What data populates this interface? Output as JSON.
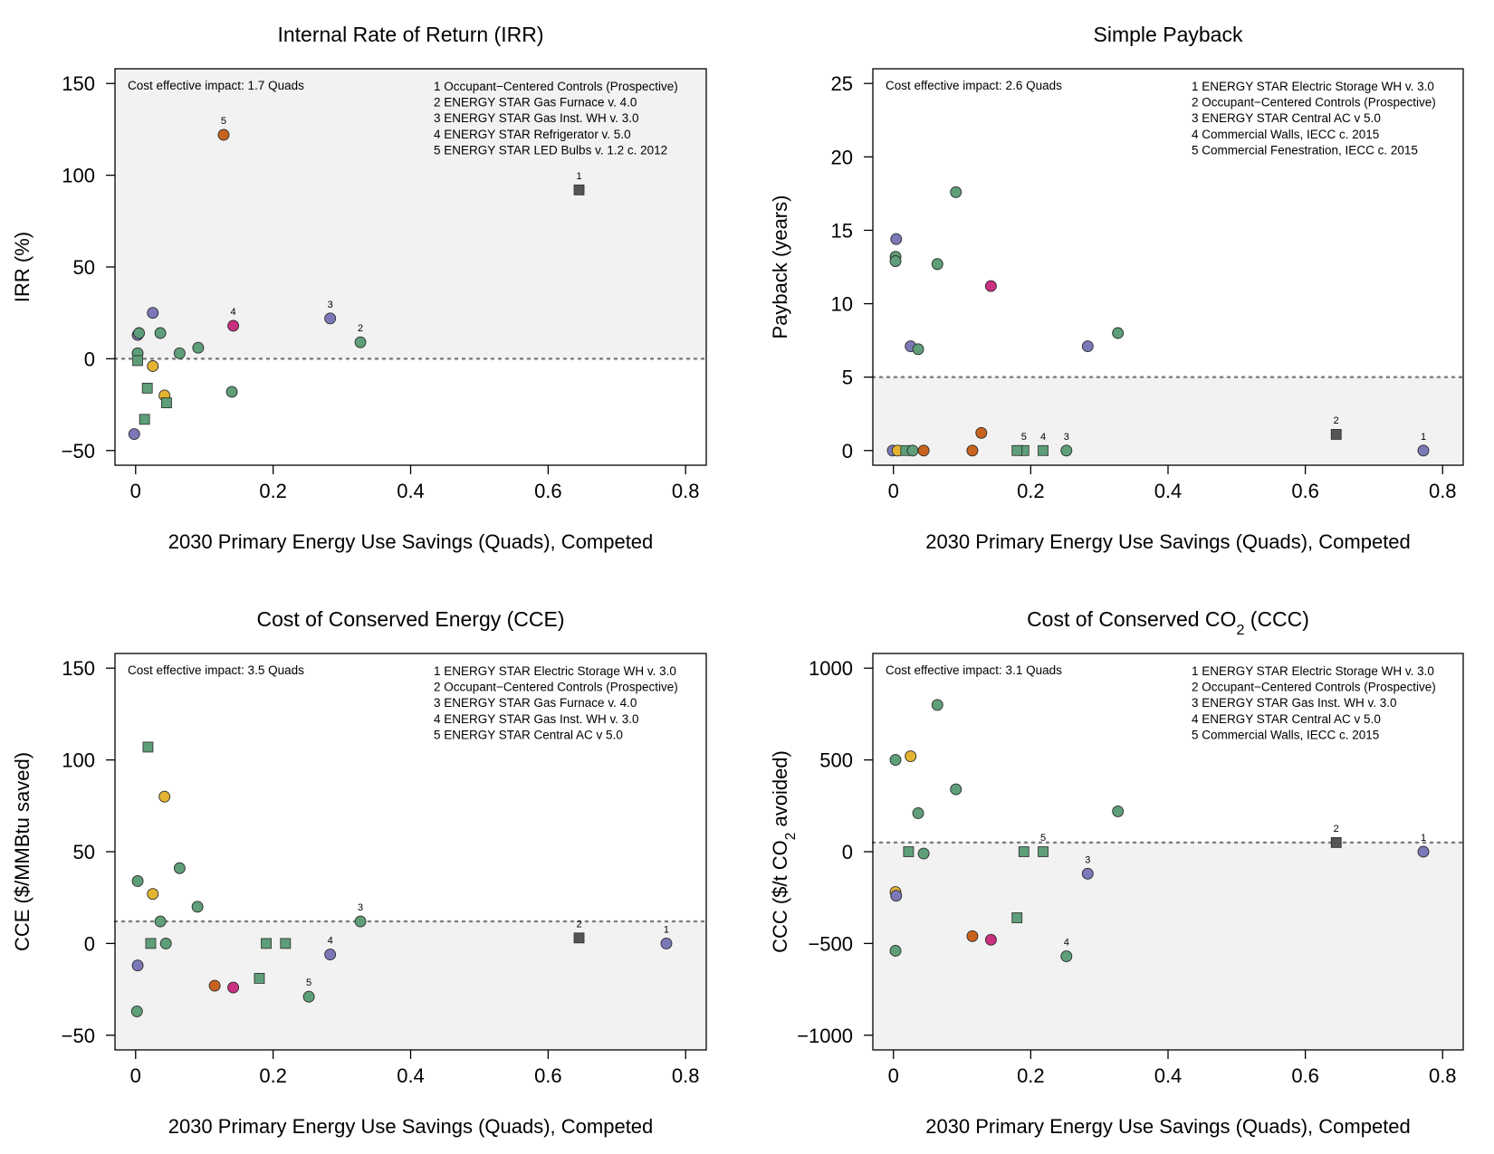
{
  "chart_data": [
    {
      "type": "scatter",
      "title": "Internal Rate of Return (IRR)",
      "xlabel": "2030 Primary Energy Use Savings (Quads), Competed",
      "ylabel": "IRR (%)",
      "xlim": [
        -0.03,
        0.83
      ],
      "ylim": [
        -58,
        158
      ],
      "xticks": [
        "0",
        "0.2",
        "0.4",
        "0.6",
        "0.8"
      ],
      "yticks": [
        "−50",
        "0",
        "50",
        "100",
        "150"
      ],
      "ytick_values": [
        -50,
        0,
        50,
        100,
        150
      ],
      "threshold": 0,
      "shaded_region": "above",
      "impact_note": "Cost effective impact: 1.7 Quads",
      "legend": [
        "1 Occupant−Centered Controls (Prospective)",
        "2 ENERGY STAR Gas Furnace v. 4.0",
        "3 ENERGY STAR Gas Inst. WH v. 3.0",
        "4 ENERGY STAR Refrigerator v. 5.0",
        "5 ENERGY STAR LED Bulbs v. 1.2 c. 2012"
      ],
      "points": [
        {
          "x": 0.645,
          "y": 92,
          "shape": "square",
          "color": "#555555",
          "label": "1"
        },
        {
          "x": 0.128,
          "y": 122,
          "shape": "circle",
          "color": "#c8621f",
          "label": "5"
        },
        {
          "x": 0.142,
          "y": 18,
          "shape": "circle",
          "color": "#c9307f",
          "label": "4"
        },
        {
          "x": 0.283,
          "y": 22,
          "shape": "circle",
          "color": "#7b78b8",
          "label": "3"
        },
        {
          "x": 0.327,
          "y": 9,
          "shape": "circle",
          "color": "#5e9e78",
          "label": "2"
        },
        {
          "x": 0.025,
          "y": 25,
          "shape": "circle",
          "color": "#7b78b8",
          "label": ""
        },
        {
          "x": 0.003,
          "y": 13,
          "shape": "circle",
          "color": "#7b78b8",
          "label": ""
        },
        {
          "x": 0.005,
          "y": 14,
          "shape": "circle",
          "color": "#5e9e78",
          "label": ""
        },
        {
          "x": 0.036,
          "y": 14,
          "shape": "circle",
          "color": "#5e9e78",
          "label": ""
        },
        {
          "x": 0.003,
          "y": 3,
          "shape": "circle",
          "color": "#5e9e78",
          "label": ""
        },
        {
          "x": 0.091,
          "y": 6,
          "shape": "circle",
          "color": "#5e9e78",
          "label": ""
        },
        {
          "x": 0.064,
          "y": 3,
          "shape": "circle",
          "color": "#5e9e78",
          "label": ""
        },
        {
          "x": 0.003,
          "y": -1,
          "shape": "square",
          "color": "#5e9e78",
          "label": ""
        },
        {
          "x": 0.025,
          "y": -4,
          "shape": "circle",
          "color": "#e3b332",
          "label": ""
        },
        {
          "x": 0.017,
          "y": -16,
          "shape": "square",
          "color": "#5e9e78",
          "label": ""
        },
        {
          "x": 0.042,
          "y": -20,
          "shape": "circle",
          "color": "#e3b332",
          "label": ""
        },
        {
          "x": 0.045,
          "y": -24,
          "shape": "square",
          "color": "#5e9e78",
          "label": ""
        },
        {
          "x": 0.14,
          "y": -18,
          "shape": "circle",
          "color": "#5e9e78",
          "label": ""
        },
        {
          "x": 0.013,
          "y": -33,
          "shape": "square",
          "color": "#5e9e78",
          "label": ""
        },
        {
          "x": -0.002,
          "y": -41,
          "shape": "circle",
          "color": "#7b78b8",
          "label": ""
        }
      ]
    },
    {
      "type": "scatter",
      "title": "Simple Payback",
      "xlabel": "2030 Primary Energy Use Savings (Quads), Competed",
      "ylabel": "Payback (years)",
      "xlim": [
        -0.03,
        0.83
      ],
      "ylim": [
        -1,
        26
      ],
      "xticks": [
        "0",
        "0.2",
        "0.4",
        "0.6",
        "0.8"
      ],
      "yticks": [
        "0",
        "5",
        "10",
        "15",
        "20",
        "25"
      ],
      "ytick_values": [
        0,
        5,
        10,
        15,
        20,
        25
      ],
      "threshold": 5,
      "shaded_region": "below",
      "impact_note": "Cost effective impact: 2.6 Quads",
      "legend": [
        "1 ENERGY STAR Electric Storage WH v. 3.0",
        "2 Occupant−Centered Controls (Prospective)",
        "3 ENERGY STAR Central AC v 5.0",
        "4 Commercial Walls, IECC c. 2015",
        "5 Commercial Fenestration, IECC c. 2015"
      ],
      "points": [
        {
          "x": 0.772,
          "y": 0,
          "shape": "circle",
          "color": "#7b78b8",
          "label": "1"
        },
        {
          "x": 0.645,
          "y": 1.1,
          "shape": "square",
          "color": "#555555",
          "label": "2"
        },
        {
          "x": 0.252,
          "y": 0,
          "shape": "circle",
          "color": "#5e9e78",
          "label": "3"
        },
        {
          "x": 0.218,
          "y": 0,
          "shape": "square",
          "color": "#5e9e78",
          "label": "4"
        },
        {
          "x": 0.19,
          "y": 0,
          "shape": "square",
          "color": "#5e9e78",
          "label": "5"
        },
        {
          "x": 0.091,
          "y": 17.6,
          "shape": "circle",
          "color": "#5e9e78",
          "label": ""
        },
        {
          "x": 0.004,
          "y": 14.4,
          "shape": "circle",
          "color": "#7b78b8",
          "label": ""
        },
        {
          "x": 0.003,
          "y": 13.2,
          "shape": "circle",
          "color": "#5e9e78",
          "label": ""
        },
        {
          "x": 0.003,
          "y": 12.9,
          "shape": "circle",
          "color": "#5e9e78",
          "label": ""
        },
        {
          "x": 0.064,
          "y": 12.7,
          "shape": "circle",
          "color": "#5e9e78",
          "label": ""
        },
        {
          "x": 0.142,
          "y": 11.2,
          "shape": "circle",
          "color": "#c9307f",
          "label": ""
        },
        {
          "x": 0.025,
          "y": 7.1,
          "shape": "circle",
          "color": "#7b78b8",
          "label": ""
        },
        {
          "x": 0.036,
          "y": 6.9,
          "shape": "circle",
          "color": "#5e9e78",
          "label": ""
        },
        {
          "x": 0.283,
          "y": 7.1,
          "shape": "circle",
          "color": "#7b78b8",
          "label": ""
        },
        {
          "x": 0.327,
          "y": 8.0,
          "shape": "circle",
          "color": "#5e9e78",
          "label": ""
        },
        {
          "x": 0.128,
          "y": 1.2,
          "shape": "circle",
          "color": "#c8621f",
          "label": ""
        },
        {
          "x": -0.001,
          "y": 0,
          "shape": "circle",
          "color": "#7b78b8",
          "label": ""
        },
        {
          "x": 0.006,
          "y": 0,
          "shape": "circle",
          "color": "#e3b332",
          "label": ""
        },
        {
          "x": 0.018,
          "y": 0,
          "shape": "square",
          "color": "#5e9e78",
          "label": ""
        },
        {
          "x": 0.028,
          "y": 0,
          "shape": "circle",
          "color": "#5e9e78",
          "label": ""
        },
        {
          "x": 0.044,
          "y": 0,
          "shape": "circle",
          "color": "#c8621f",
          "label": ""
        },
        {
          "x": 0.115,
          "y": 0,
          "shape": "circle",
          "color": "#c8621f",
          "label": ""
        },
        {
          "x": 0.18,
          "y": 0,
          "shape": "square",
          "color": "#5e9e78",
          "label": ""
        }
      ]
    },
    {
      "type": "scatter",
      "title": "Cost of Conserved Energy (CCE)",
      "xlabel": "2030 Primary Energy Use Savings (Quads), Competed",
      "ylabel": "CCE ($/MMBtu saved)",
      "xlim": [
        -0.03,
        0.83
      ],
      "ylim": [
        -58,
        158
      ],
      "xticks": [
        "0",
        "0.2",
        "0.4",
        "0.6",
        "0.8"
      ],
      "yticks": [
        "−50",
        "0",
        "50",
        "100",
        "150"
      ],
      "ytick_values": [
        -50,
        0,
        50,
        100,
        150
      ],
      "threshold": 12,
      "shaded_region": "below",
      "impact_note": "Cost effective impact: 3.5 Quads",
      "legend": [
        "1 ENERGY STAR Electric Storage WH v. 3.0",
        "2 Occupant−Centered Controls (Prospective)",
        "3 ENERGY STAR Gas Furnace v. 4.0",
        "4 ENERGY STAR Gas Inst. WH v. 3.0",
        "5 ENERGY STAR Central AC v 5.0"
      ],
      "points": [
        {
          "x": 0.772,
          "y": 0,
          "shape": "circle",
          "color": "#7b78b8",
          "label": "1"
        },
        {
          "x": 0.645,
          "y": 3,
          "shape": "square",
          "color": "#555555",
          "label": "2"
        },
        {
          "x": 0.327,
          "y": 12,
          "shape": "circle",
          "color": "#5e9e78",
          "label": "3"
        },
        {
          "x": 0.283,
          "y": -6,
          "shape": "circle",
          "color": "#7b78b8",
          "label": "4"
        },
        {
          "x": 0.252,
          "y": -29,
          "shape": "circle",
          "color": "#5e9e78",
          "label": "5"
        },
        {
          "x": 0.018,
          "y": 107,
          "shape": "square",
          "color": "#5e9e78",
          "label": ""
        },
        {
          "x": 0.042,
          "y": 80,
          "shape": "circle",
          "color": "#e3b332",
          "label": ""
        },
        {
          "x": 0.064,
          "y": 41,
          "shape": "circle",
          "color": "#5e9e78",
          "label": ""
        },
        {
          "x": 0.003,
          "y": 34,
          "shape": "circle",
          "color": "#5e9e78",
          "label": ""
        },
        {
          "x": 0.025,
          "y": 27,
          "shape": "circle",
          "color": "#e3b332",
          "label": ""
        },
        {
          "x": 0.09,
          "y": 20,
          "shape": "circle",
          "color": "#5e9e78",
          "label": ""
        },
        {
          "x": 0.036,
          "y": 12,
          "shape": "circle",
          "color": "#5e9e78",
          "label": ""
        },
        {
          "x": 0.022,
          "y": 0,
          "shape": "square",
          "color": "#5e9e78",
          "label": ""
        },
        {
          "x": 0.044,
          "y": 0,
          "shape": "circle",
          "color": "#5e9e78",
          "label": ""
        },
        {
          "x": 0.19,
          "y": 0,
          "shape": "square",
          "color": "#5e9e78",
          "label": ""
        },
        {
          "x": 0.218,
          "y": 0,
          "shape": "square",
          "color": "#5e9e78",
          "label": ""
        },
        {
          "x": 0.003,
          "y": -12,
          "shape": "circle",
          "color": "#7b78b8",
          "label": ""
        },
        {
          "x": 0.18,
          "y": -19,
          "shape": "square",
          "color": "#5e9e78",
          "label": ""
        },
        {
          "x": 0.115,
          "y": -23,
          "shape": "circle",
          "color": "#c8621f",
          "label": ""
        },
        {
          "x": 0.142,
          "y": -24,
          "shape": "circle",
          "color": "#c9307f",
          "label": ""
        },
        {
          "x": 0.002,
          "y": -37,
          "shape": "circle",
          "color": "#5e9e78",
          "label": ""
        }
      ]
    },
    {
      "type": "scatter",
      "title": "Cost of Conserved CO",
      "title_subscript": "2",
      "title_suffix": " (CCC)",
      "xlabel": "2030 Primary Energy Use Savings (Quads), Competed",
      "ylabel": "CCC ($/t  CO",
      "ylabel_subscript": "2",
      "ylabel_suffix": "  avoided)",
      "xlim": [
        -0.03,
        0.83
      ],
      "ylim": [
        -1080,
        1080
      ],
      "xticks": [
        "0",
        "0.2",
        "0.4",
        "0.6",
        "0.8"
      ],
      "yticks": [
        "−1000",
        "−500",
        "0",
        "500",
        "1000"
      ],
      "ytick_values": [
        -1000,
        -500,
        0,
        500,
        1000
      ],
      "threshold": 50,
      "shaded_region": "below",
      "impact_note": "Cost effective impact: 3.1 Quads",
      "legend": [
        "1 ENERGY STAR Electric Storage WH v. 3.0",
        "2 Occupant−Centered Controls (Prospective)",
        "3 ENERGY STAR Gas Inst. WH v. 3.0",
        "4 ENERGY STAR Central AC v 5.0",
        "5 Commercial Walls, IECC c. 2015"
      ],
      "points": [
        {
          "x": 0.772,
          "y": 0,
          "shape": "circle",
          "color": "#7b78b8",
          "label": "1"
        },
        {
          "x": 0.645,
          "y": 50,
          "shape": "square",
          "color": "#555555",
          "label": "2"
        },
        {
          "x": 0.283,
          "y": -120,
          "shape": "circle",
          "color": "#7b78b8",
          "label": "3"
        },
        {
          "x": 0.252,
          "y": -570,
          "shape": "circle",
          "color": "#5e9e78",
          "label": "4"
        },
        {
          "x": 0.218,
          "y": 0,
          "shape": "square",
          "color": "#5e9e78",
          "label": "5"
        },
        {
          "x": 0.064,
          "y": 800,
          "shape": "circle",
          "color": "#5e9e78",
          "label": ""
        },
        {
          "x": 0.025,
          "y": 520,
          "shape": "circle",
          "color": "#e3b332",
          "label": ""
        },
        {
          "x": 0.003,
          "y": 500,
          "shape": "circle",
          "color": "#5e9e78",
          "label": ""
        },
        {
          "x": 0.091,
          "y": 340,
          "shape": "circle",
          "color": "#5e9e78",
          "label": ""
        },
        {
          "x": 0.036,
          "y": 210,
          "shape": "circle",
          "color": "#5e9e78",
          "label": ""
        },
        {
          "x": 0.327,
          "y": 220,
          "shape": "circle",
          "color": "#5e9e78",
          "label": ""
        },
        {
          "x": 0.022,
          "y": 0,
          "shape": "square",
          "color": "#5e9e78",
          "label": ""
        },
        {
          "x": 0.044,
          "y": -10,
          "shape": "circle",
          "color": "#5e9e78",
          "label": ""
        },
        {
          "x": 0.19,
          "y": 0,
          "shape": "square",
          "color": "#5e9e78",
          "label": ""
        },
        {
          "x": 0.003,
          "y": -220,
          "shape": "circle",
          "color": "#e3b332",
          "label": ""
        },
        {
          "x": 0.004,
          "y": -240,
          "shape": "circle",
          "color": "#7b78b8",
          "label": ""
        },
        {
          "x": 0.18,
          "y": -360,
          "shape": "square",
          "color": "#5e9e78",
          "label": ""
        },
        {
          "x": 0.115,
          "y": -460,
          "shape": "circle",
          "color": "#c8621f",
          "label": ""
        },
        {
          "x": 0.142,
          "y": -480,
          "shape": "circle",
          "color": "#c9307f",
          "label": ""
        },
        {
          "x": 0.003,
          "y": -540,
          "shape": "circle",
          "color": "#5e9e78",
          "label": ""
        }
      ]
    }
  ]
}
